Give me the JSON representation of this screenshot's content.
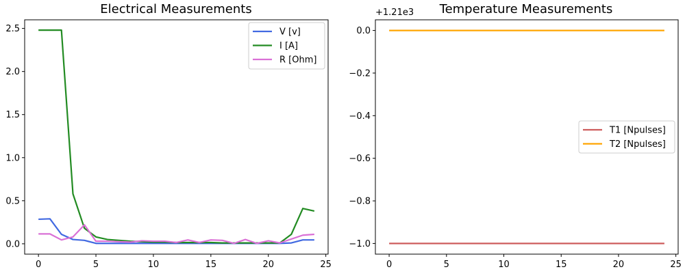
{
  "chart_data": [
    {
      "type": "line",
      "title": "Electrical Measurements",
      "xlabel": "",
      "ylabel": "",
      "xlim": [
        -1.2,
        25.2
      ],
      "ylim": [
        -0.12,
        2.6
      ],
      "xticks": [
        0,
        5,
        10,
        15,
        20,
        25
      ],
      "yticks": [
        0.0,
        0.5,
        1.0,
        1.5,
        2.0,
        2.5
      ],
      "ytick_labels": [
        "0.0",
        "0.5",
        "1.0",
        "1.5",
        "2.0",
        "2.5"
      ],
      "offset_label": "",
      "grid": false,
      "legend_position": "upper right",
      "x": [
        0,
        1,
        2,
        3,
        4,
        5,
        6,
        7,
        8,
        9,
        10,
        11,
        12,
        13,
        14,
        15,
        16,
        17,
        18,
        19,
        20,
        21,
        22,
        23,
        24
      ],
      "series": [
        {
          "name": "V [v]",
          "color": "#4169e1",
          "values": [
            0.285,
            0.29,
            0.11,
            0.05,
            0.04,
            0.005,
            0.005,
            0.005,
            0.005,
            0.005,
            0.005,
            0.005,
            0.005,
            0.005,
            0.005,
            0.005,
            0.005,
            0.005,
            0.005,
            0.005,
            0.005,
            0.005,
            0.01,
            0.045,
            0.045
          ]
        },
        {
          "name": "I [A]",
          "color": "#228b22",
          "values": [
            2.48,
            2.48,
            2.48,
            0.58,
            0.18,
            0.08,
            0.05,
            0.04,
            0.03,
            0.025,
            0.02,
            0.02,
            0.015,
            0.015,
            0.015,
            0.015,
            0.01,
            0.01,
            0.01,
            0.01,
            0.01,
            0.01,
            0.11,
            0.41,
            0.38
          ]
        },
        {
          "name": "R [Ohm]",
          "color": "#da70d6",
          "values": [
            0.115,
            0.115,
            0.045,
            0.08,
            0.22,
            0.03,
            0.03,
            0.025,
            0.02,
            0.035,
            0.03,
            0.03,
            0.015,
            0.045,
            0.015,
            0.045,
            0.04,
            0.005,
            0.05,
            0.005,
            0.035,
            0.01,
            0.055,
            0.1,
            0.11
          ]
        }
      ]
    },
    {
      "type": "line",
      "title": "Temperature Measurements",
      "xlabel": "",
      "ylabel": "",
      "xlim": [
        -1.2,
        25.2
      ],
      "ylim": [
        -1.05,
        0.05
      ],
      "xticks": [
        0,
        5,
        10,
        15,
        20,
        25
      ],
      "yticks": [
        0.0,
        -0.2,
        -0.4,
        -0.6,
        -0.8,
        -1.0
      ],
      "ytick_labels": [
        "0.0",
        "−0.2",
        "−0.4",
        "−0.6",
        "−0.8",
        "−1.0"
      ],
      "offset_label": "+1.21e3",
      "grid": false,
      "legend_position": "center right",
      "x": [
        0,
        1,
        2,
        3,
        4,
        5,
        6,
        7,
        8,
        9,
        10,
        11,
        12,
        13,
        14,
        15,
        16,
        17,
        18,
        19,
        20,
        21,
        22,
        23,
        24
      ],
      "series": [
        {
          "name": "T1 [Npulses]",
          "color": "#cd5c5c",
          "values": [
            -1,
            -1,
            -1,
            -1,
            -1,
            -1,
            -1,
            -1,
            -1,
            -1,
            -1,
            -1,
            -1,
            -1,
            -1,
            -1,
            -1,
            -1,
            -1,
            -1,
            -1,
            -1,
            -1,
            -1,
            -1
          ]
        },
        {
          "name": "T2 [Npulses]",
          "color": "#ffa500",
          "values": [
            0,
            0,
            0,
            0,
            0,
            0,
            0,
            0,
            0,
            0,
            0,
            0,
            0,
            0,
            0,
            0,
            0,
            0,
            0,
            0,
            0,
            0,
            0,
            0,
            0
          ]
        }
      ]
    }
  ]
}
